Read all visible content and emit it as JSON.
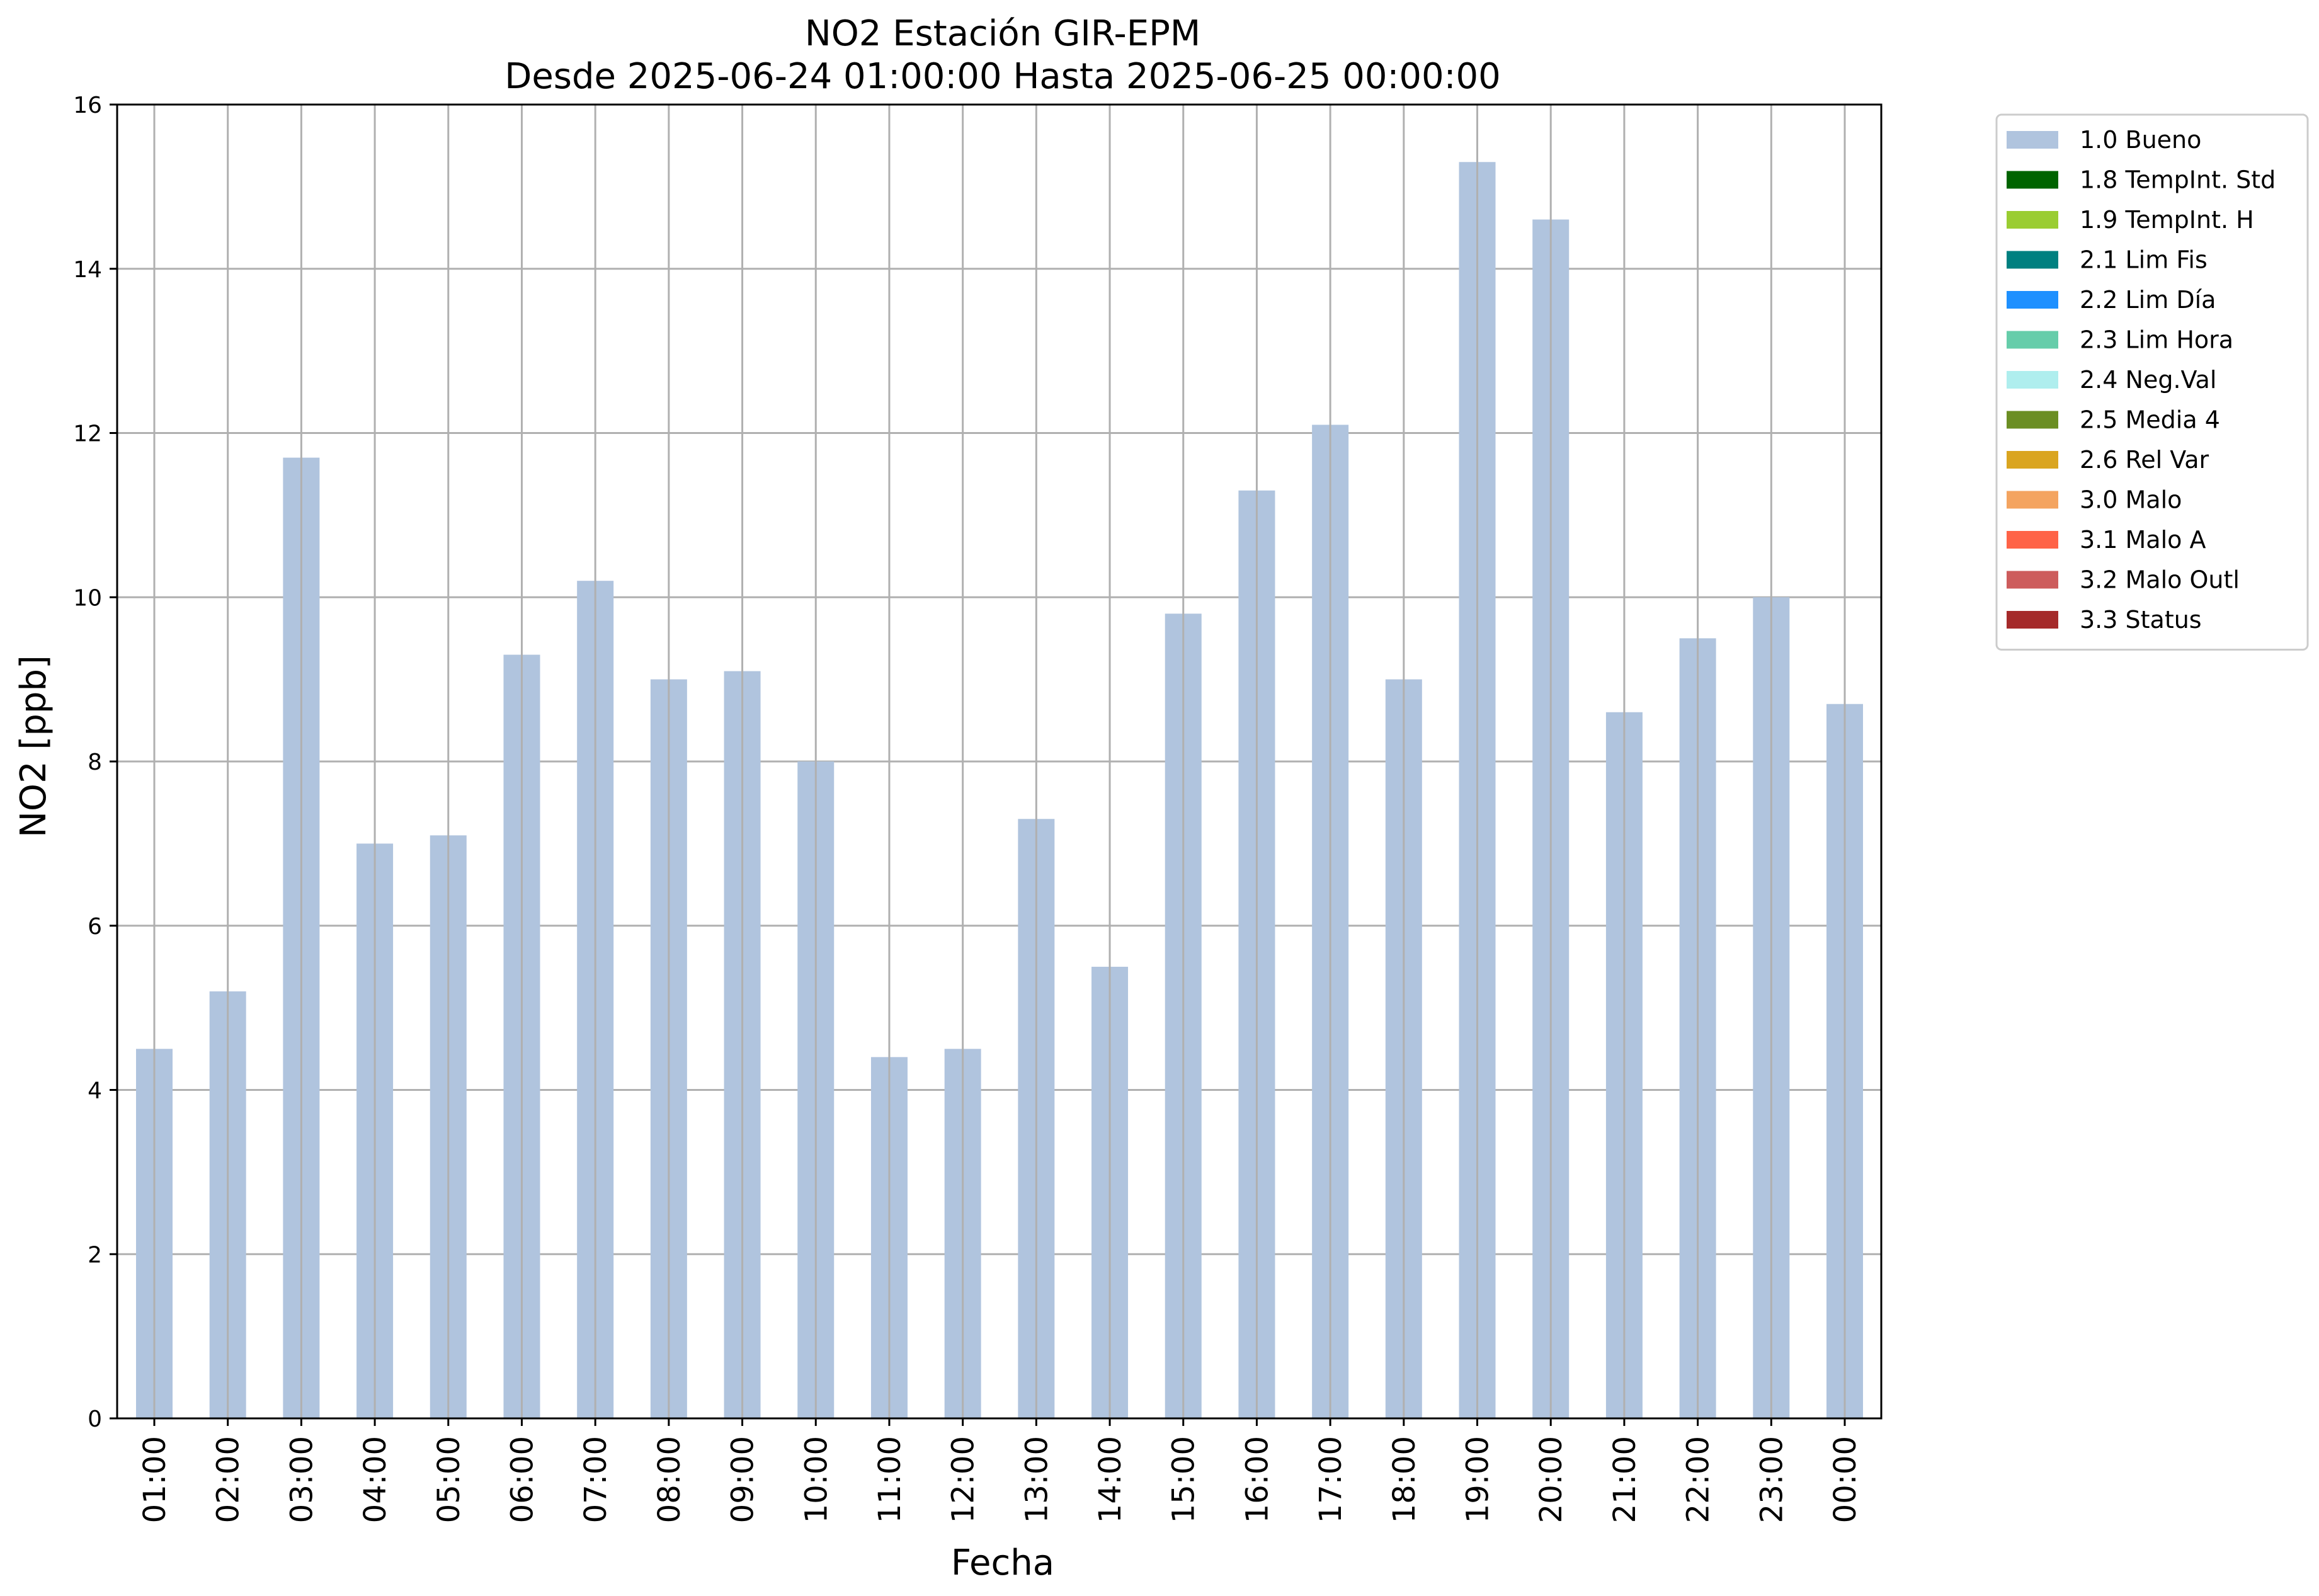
{
  "chart_data": {
    "type": "bar",
    "title": "NO2 Estación GIR-EPM",
    "subtitle": "Desde 2025-06-24 01:00:00 Hasta 2025-06-25 00:00:00",
    "xlabel": "Fecha",
    "ylabel": "NO2 [ppb]",
    "ylim": [
      0,
      16
    ],
    "yticks": [
      0,
      2,
      4,
      6,
      8,
      10,
      12,
      14,
      16
    ],
    "grid": true,
    "legend_position": "outside-top-right",
    "categories": [
      "01:00",
      "02:00",
      "03:00",
      "04:00",
      "05:00",
      "06:00",
      "07:00",
      "08:00",
      "09:00",
      "10:00",
      "11:00",
      "12:00",
      "13:00",
      "14:00",
      "15:00",
      "16:00",
      "17:00",
      "18:00",
      "19:00",
      "20:00",
      "21:00",
      "22:00",
      "23:00",
      "00:00"
    ],
    "series": [
      {
        "name": "1.0 Bueno",
        "color": "#b0c4de",
        "values": [
          4.5,
          5.2,
          11.7,
          7.0,
          7.1,
          9.3,
          10.2,
          9.0,
          9.1,
          8.0,
          4.4,
          4.5,
          7.3,
          5.5,
          9.8,
          11.3,
          12.1,
          9.0,
          15.3,
          14.6,
          8.6,
          9.5,
          10.0,
          8.7
        ]
      }
    ],
    "legend": [
      {
        "label": "1.0 Bueno",
        "color": "#b0c4de"
      },
      {
        "label": "1.8 TempInt. Std",
        "color": "#006400"
      },
      {
        "label": "1.9 TempInt. H",
        "color": "#9acd32"
      },
      {
        "label": "2.1 Lim Fis",
        "color": "#008080"
      },
      {
        "label": "2.2 Lim Día",
        "color": "#1e90ff"
      },
      {
        "label": "2.3 Lim Hora",
        "color": "#66cdaa"
      },
      {
        "label": "2.4 Neg.Val",
        "color": "#afeeee"
      },
      {
        "label": "2.5 Media 4",
        "color": "#6b8e23"
      },
      {
        "label": "2.6 Rel Var",
        "color": "#daa520"
      },
      {
        "label": "3.0 Malo",
        "color": "#f4a460"
      },
      {
        "label": "3.1 Malo A",
        "color": "#ff6347"
      },
      {
        "label": "3.2 Malo Outl",
        "color": "#cd5c5c"
      },
      {
        "label": "3.3 Status",
        "color": "#a52a2a"
      }
    ]
  }
}
